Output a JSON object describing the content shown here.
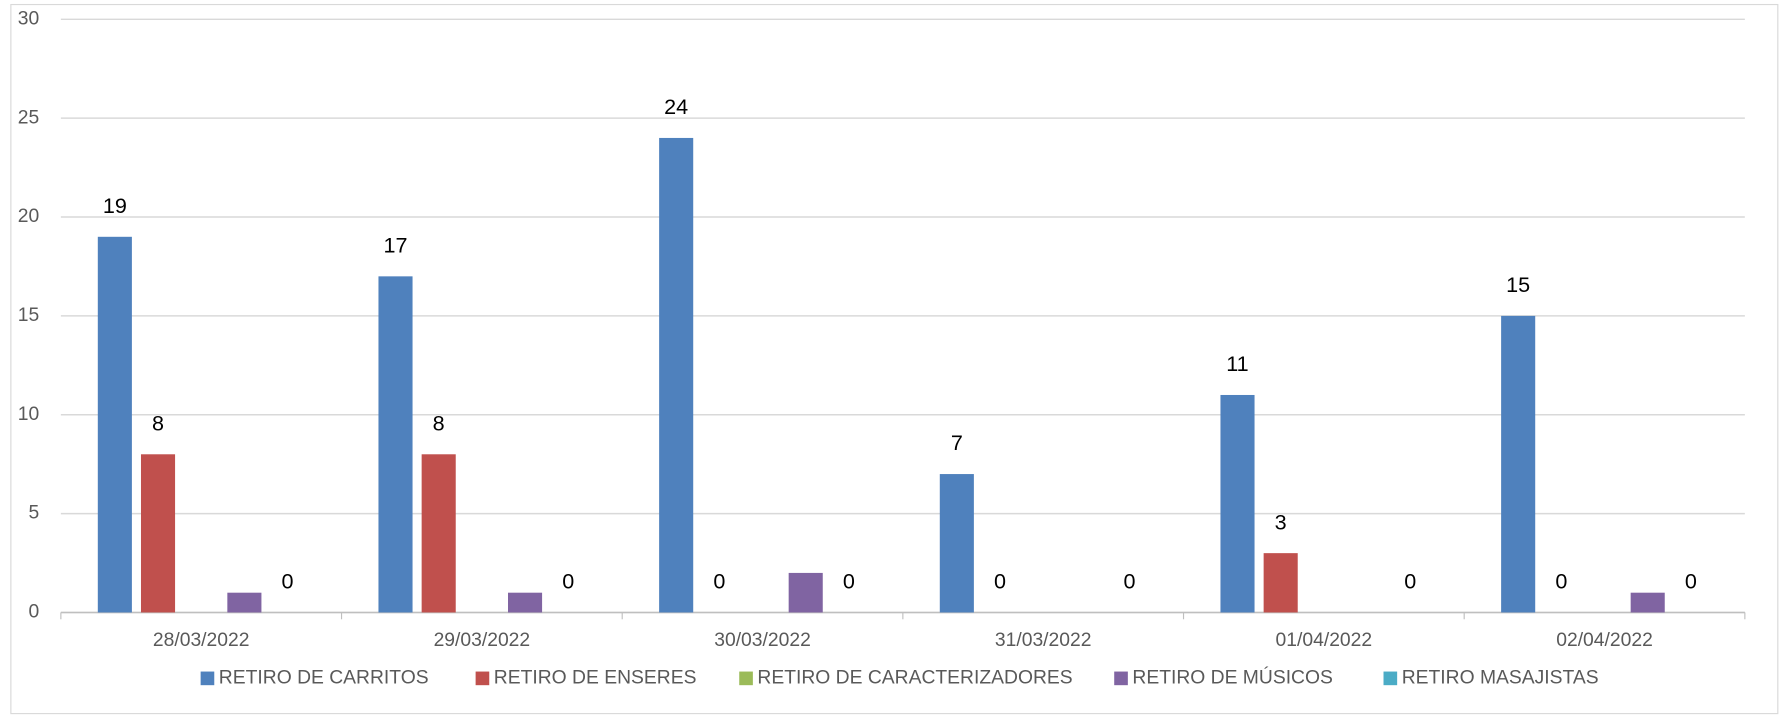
{
  "chart_data": {
    "type": "bar",
    "categories": [
      "28/03/2022",
      "29/03/2022",
      "30/03/2022",
      "31/03/2022",
      "01/04/2022",
      "02/04/2022"
    ],
    "series": [
      {
        "name": "RETIRO DE CARRITOS",
        "color": "#4f81bd",
        "values": [
          19,
          17,
          24,
          7,
          11,
          15
        ],
        "show_labels": true
      },
      {
        "name": "RETIRO DE ENSERES",
        "color": "#c0504d",
        "values": [
          8,
          8,
          0,
          0,
          3,
          0
        ],
        "show_labels": true
      },
      {
        "name": "RETIRO DE CARACTERIZADORES",
        "color": "#9bbb59",
        "values": [
          0,
          0,
          0,
          0,
          0,
          0
        ],
        "show_labels": false
      },
      {
        "name": "RETIRO DE MÚSICOS",
        "color": "#8064a2",
        "values": [
          1,
          1,
          2,
          0,
          0,
          1
        ],
        "show_labels": false
      },
      {
        "name": "RETIRO MASAJISTAS",
        "color": "#4bacc6",
        "values": [
          0,
          0,
          0,
          0,
          0,
          0
        ],
        "show_labels": true
      }
    ],
    "ylim": [
      0,
      30
    ],
    "yticks": [
      0,
      5,
      10,
      15,
      20,
      25,
      30
    ],
    "grid": true,
    "legend": "bottom"
  }
}
